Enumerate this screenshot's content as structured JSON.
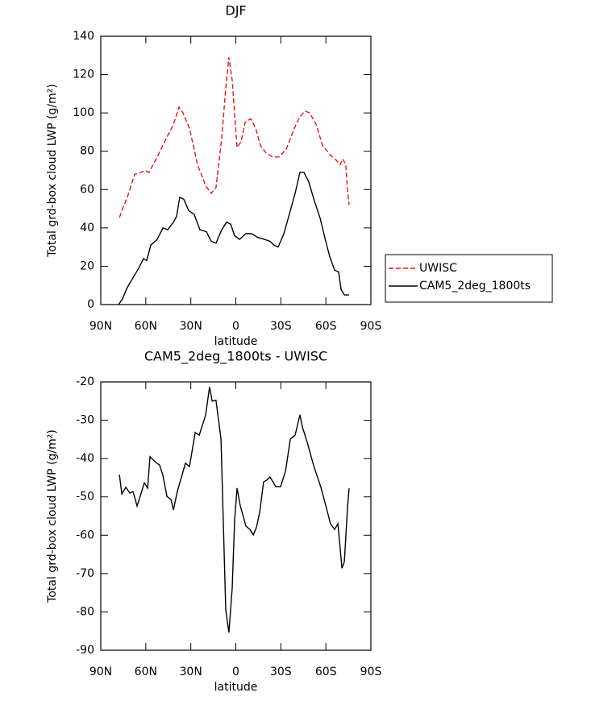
{
  "chart_data": [
    {
      "type": "line",
      "title": "DJF",
      "x_label": "latitude",
      "y_label": "Total grd-box cloud LWP (g/m²)",
      "xlim": [
        90,
        -90
      ],
      "xticks": [
        {
          "value": 90,
          "label": "90N"
        },
        {
          "value": 60,
          "label": "60N"
        },
        {
          "value": 30,
          "label": "30N"
        },
        0,
        {
          "value": -30,
          "label": "30S"
        },
        {
          "value": -60,
          "label": "60S"
        },
        {
          "value": -90,
          "label": "90S"
        }
      ],
      "ylim": [
        0,
        140
      ],
      "yticks": [
        0,
        20,
        40,
        60,
        80,
        100,
        120,
        140
      ],
      "legend": "right",
      "series": [
        {
          "name": "UWISC",
          "color": "#e8141c",
          "dashed": true,
          "x": [
            77.6,
            75.5,
            72.3,
            67.4,
            63.1,
            60.4,
            57.8,
            52.4,
            48.1,
            41.6,
            37.9,
            35.2,
            30.9,
            25.5,
            20.1,
            16.4,
            13.2,
            9.4,
            6.7,
            4.6,
            2.4,
            -0.8,
            -3.5,
            -6.2,
            -10,
            -13.2,
            -16.4,
            -20.2,
            -24.5,
            -28.8,
            -33.6,
            -39,
            -42.7,
            -46,
            -49.2,
            -53.5,
            -57.8,
            -63.1,
            -67.4,
            -69.6,
            -71.2,
            -73.3,
            -74.4,
            -75.5
          ],
          "values": [
            45.4,
            50,
            56,
            68,
            69,
            70,
            69,
            77,
            84,
            94,
            103,
            100,
            92,
            73,
            62,
            58,
            61,
            87,
            113,
            129,
            117,
            82,
            85,
            95,
            97,
            92,
            83,
            79,
            77,
            77,
            81,
            92,
            98,
            101,
            100,
            94,
            83,
            78,
            75,
            73,
            76,
            73,
            60,
            52
          ]
        },
        {
          "name": "CAM5_2deg_1800ts",
          "color": "#000000",
          "dashed": false,
          "x": [
            78.2,
            75.5,
            72.3,
            68.5,
            64.7,
            61.5,
            59.4,
            56.7,
            52.4,
            48.6,
            45.4,
            41.6,
            39.5,
            37.4,
            34.7,
            31.4,
            27.7,
            23.9,
            19.6,
            16.4,
            13.2,
            9.4,
            6.2,
            3.5,
            0.8,
            -2.4,
            -6.7,
            -10.5,
            -14.8,
            -19.1,
            -22.8,
            -25.5,
            -28.2,
            -32,
            -36.3,
            -39.5,
            -42.7,
            -45.4,
            -48.6,
            -52.4,
            -56.2,
            -59.9,
            -62.6,
            -65.8,
            -68.5,
            -70.1,
            -72.3,
            -75.5
          ],
          "values": [
            0,
            3,
            9,
            14,
            19,
            24,
            23,
            31,
            34,
            40,
            39,
            43,
            46,
            56,
            55,
            49,
            47,
            39,
            38,
            33,
            32,
            39,
            43,
            42,
            36,
            34,
            37,
            37,
            35,
            34,
            33,
            31,
            30,
            37,
            49,
            58,
            69,
            69,
            64,
            54,
            45,
            33,
            25,
            18,
            17,
            8,
            5,
            5
          ]
        }
      ]
    },
    {
      "type": "line",
      "title": "CAM5_2deg_1800ts - UWISC",
      "x_label": "latitude",
      "y_label": "Total grd-box cloud LWP (g/m²)",
      "xlim": [
        90,
        -90
      ],
      "xticks": [
        {
          "value": 90,
          "label": "90N"
        },
        {
          "value": 60,
          "label": "60N"
        },
        {
          "value": 30,
          "label": "30N"
        },
        0,
        {
          "value": -30,
          "label": "30S"
        },
        {
          "value": -60,
          "label": "60S"
        },
        {
          "value": -90,
          "label": "90S"
        }
      ],
      "ylim": [
        -90,
        -20
      ],
      "yticks": [
        -90,
        -80,
        -70,
        -60,
        -50,
        -40,
        -30,
        -20
      ],
      "series": [
        {
          "color": "#000000",
          "dashed": false,
          "x": [
            77.6,
            76,
            73.3,
            70.6,
            68.5,
            65.8,
            63.1,
            61,
            58.8,
            57.2,
            54,
            50.8,
            48.6,
            45.9,
            43.2,
            41.6,
            39,
            33.6,
            30.9,
            27.1,
            24.4,
            20.1,
            17.5,
            15.8,
            13.2,
            9.9,
            6.7,
            4.6,
            2.4,
            0.8,
            -0.8,
            -2.9,
            -6.7,
            -9.4,
            -11.6,
            -13.7,
            -15.9,
            -18.5,
            -20.7,
            -22.8,
            -26.6,
            -29.8,
            -33.1,
            -36.3,
            -39.5,
            -42.7,
            -44.4,
            -47.6,
            -51.9,
            -56.7,
            -59.9,
            -63.1,
            -65.8,
            -68,
            -70.7,
            -72.3,
            -74.4,
            -75.5
          ],
          "values": [
            -44.2,
            -49.2,
            -47.5,
            -49,
            -48.6,
            -52.4,
            -49,
            -46.3,
            -47.7,
            -39.5,
            -40.8,
            -41.7,
            -44.4,
            -49.9,
            -50.7,
            -53.4,
            -48.6,
            -41.2,
            -42.1,
            -33.2,
            -33.9,
            -28.6,
            -21.3,
            -25,
            -24.8,
            -34.9,
            -79.5,
            -85.4,
            -73.8,
            -56,
            -47.7,
            -52.2,
            -57.6,
            -58.5,
            -59.9,
            -58,
            -54,
            -46.1,
            -45.6,
            -44.8,
            -47.3,
            -47.3,
            -43.3,
            -34.9,
            -33.9,
            -28.6,
            -31.8,
            -35.8,
            -41.9,
            -47.5,
            -52.2,
            -57,
            -58.5,
            -57,
            -68.6,
            -66.9,
            -52.8,
            -47.7
          ]
        }
      ]
    }
  ]
}
